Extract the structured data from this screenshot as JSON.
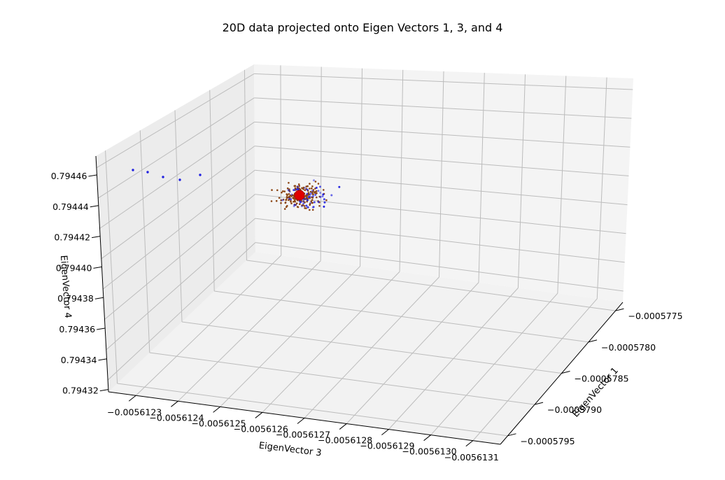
{
  "chart_data": {
    "type": "scatter",
    "title": "20D data projected onto Eigen Vectors 1, 3, and 4",
    "xlabel": "EigenVector 3",
    "ylabel": "EigenVector 1",
    "zlabel": "EigenVector 4",
    "projection": "3d",
    "grid": true,
    "pane_color": "#f2f2f2",
    "x_ticks": [
      "−0.0056123",
      "−0.0056124",
      "−0.0056125",
      "−0.0056126",
      "−0.0056127",
      "−0.0056128",
      "−0.0056129",
      "−0.0056130",
      "−0.0056131"
    ],
    "y_ticks": [
      "−0.0005775",
      "−0.0005780",
      "−0.0005785",
      "−0.0005790",
      "−0.0005795"
    ],
    "z_ticks": [
      "0.79432",
      "0.79434",
      "0.79436",
      "0.79438",
      "0.79440",
      "0.79442",
      "0.79444",
      "0.79446"
    ],
    "xlim": [
      -0.0056123,
      -0.0056131
    ],
    "ylim": [
      -0.0005775,
      -0.0005795
    ],
    "zlim": [
      0.79432,
      0.79446
    ],
    "series": [
      {
        "color": "#8b4513",
        "marker": "point",
        "description_count": 170
      },
      {
        "color": "#2020e0",
        "marker": "point",
        "description_count": 60
      },
      {
        "color": "#e00000",
        "marker": "large-circle",
        "description_count": 1
      }
    ],
    "centroid": {
      "x": -0.00561265,
      "y": -0.0005782,
      "z": 0.794455
    }
  }
}
